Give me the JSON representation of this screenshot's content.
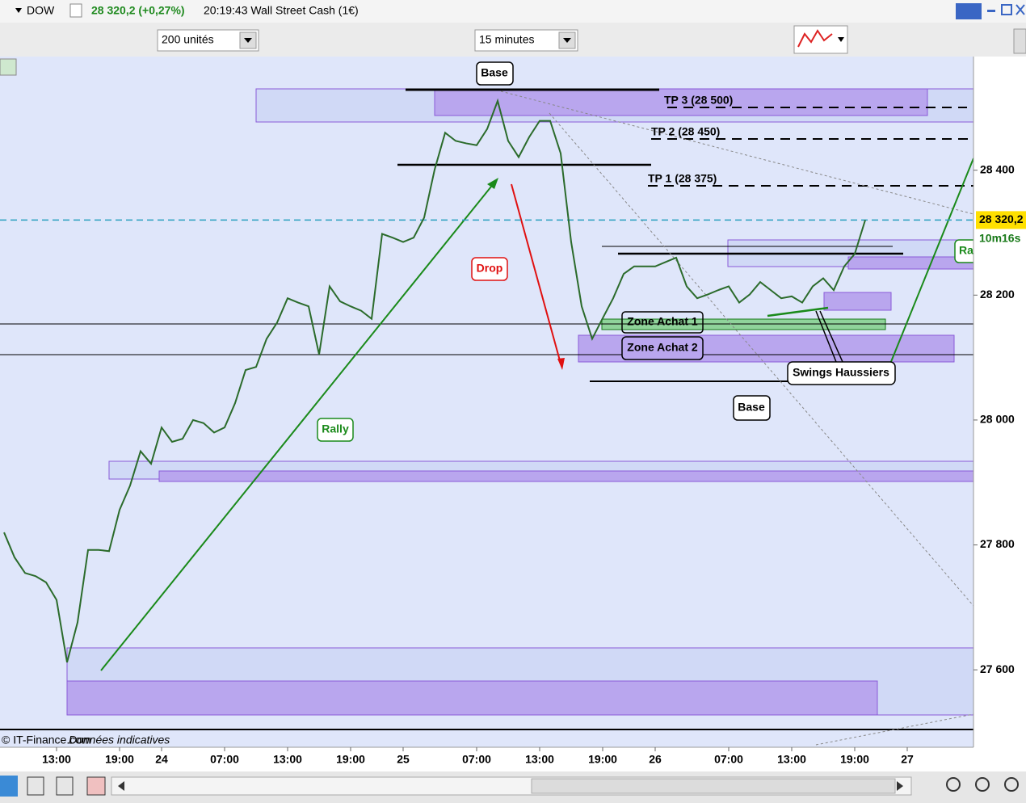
{
  "header": {
    "symbol": "DOW",
    "quote": "28 320,2 (+0,27%)",
    "info": "20:19:43 Wall Street Cash (1€)",
    "units": "200 unités",
    "timeframe": "15 minutes",
    "countdown": "10m16s",
    "footer_source": "© IT-Finance.com",
    "footer_note": "Données indicatives"
  },
  "chart_data": {
    "type": "line",
    "annotations": [
      "Base",
      "TP 3 (28 500)",
      "TP 2 (28 450)",
      "TP 1 (28 375)",
      "Drop",
      "Rally",
      "Zone Achat 1",
      "Zone Achat 2",
      "Swings Haussiers",
      "Base",
      "Ra"
    ],
    "categories": [
      null,
      null,
      null,
      null,
      null,
      "13:00",
      null,
      null,
      null,
      null,
      null,
      "19:00",
      null,
      null,
      null,
      "24",
      null,
      null,
      null,
      null,
      null,
      "07:00",
      null,
      null,
      null,
      null,
      null,
      "13:00",
      null,
      null,
      null,
      null,
      null,
      "19:00",
      null,
      null,
      null,
      null,
      "25",
      null,
      null,
      null,
      null,
      null,
      null,
      "07:00",
      null,
      null,
      null,
      null,
      null,
      "13:00",
      null,
      null,
      null,
      null,
      null,
      "19:00",
      null,
      null,
      null,
      null,
      "26",
      null,
      null,
      null,
      null,
      null,
      null,
      "07:00",
      null,
      null,
      null,
      null,
      null,
      "13:00",
      null,
      null,
      null,
      null,
      null,
      "19:00",
      null,
      null,
      null,
      null,
      "27"
    ],
    "series": [
      {
        "name": "DOW",
        "color": "#2b6b2b",
        "values": [
          27820,
          27780,
          27755,
          27750,
          27740,
          27712,
          27612,
          27676,
          27792,
          27792,
          27790,
          27856,
          27895,
          27950,
          27930,
          27988,
          27965,
          27970,
          28000,
          27995,
          27980,
          27988,
          28027,
          28080,
          28085,
          28130,
          28156,
          28195,
          28188,
          28182,
          28105,
          28214,
          28190,
          28182,
          28175,
          28162,
          28298,
          28292,
          28285,
          28292,
          28324,
          28401,
          28460,
          28447,
          28443,
          28440,
          28466,
          28511,
          28447,
          28421,
          28453,
          28479,
          28479,
          28427,
          28285,
          28182,
          28130,
          28163,
          28195,
          28234,
          28246,
          28246,
          28246,
          28253,
          28260,
          28214,
          28195,
          28201,
          28208,
          28214,
          28188,
          28201,
          28221,
          28208,
          28195,
          28198,
          28188,
          28214,
          28227,
          28208,
          28246,
          28266,
          28320.2,
          null,
          null,
          null,
          null
        ]
      }
    ],
    "last_price": {
      "value": 28320.2,
      "label": "28 320,2"
    },
    "ylim": [
      27476,
      28582
    ],
    "yticks": [
      {
        "value": 27600,
        "label": "27 600"
      },
      {
        "value": 27800,
        "label": "27 800"
      },
      {
        "value": 28000,
        "label": "28 000"
      },
      {
        "value": 28200,
        "label": "28 200"
      },
      {
        "value": 28400,
        "label": "28 400"
      }
    ]
  }
}
